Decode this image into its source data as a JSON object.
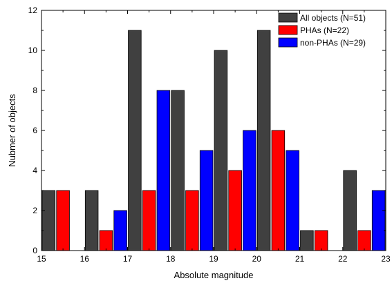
{
  "chart_data": {
    "type": "bar",
    "title": "",
    "xlabel": "Absolute magnitude",
    "ylabel": "Nubmer of objects",
    "xlim": [
      15,
      23
    ],
    "ylim": [
      0,
      12
    ],
    "bin_edges": [
      15,
      16,
      17,
      18,
      19,
      20,
      21,
      22,
      23
    ],
    "x_ticks": [
      "15",
      "16",
      "17",
      "18",
      "19",
      "20",
      "21",
      "22",
      "23"
    ],
    "y_ticks": [
      "0",
      "2",
      "4",
      "6",
      "8",
      "10",
      "12"
    ],
    "grid": false,
    "legend_position": "top-right",
    "series": [
      {
        "name": "All objects (N=51)",
        "color": "#404040",
        "values": [
          3,
          3,
          11,
          8,
          10,
          11,
          1,
          4
        ]
      },
      {
        "name": "PHAs (N=22)",
        "color": "#ff0000",
        "values": [
          3,
          1,
          3,
          3,
          4,
          6,
          1,
          1
        ]
      },
      {
        "name": "non-PHAs (N=29)",
        "color": "#0000ff",
        "values": [
          0,
          2,
          8,
          5,
          6,
          5,
          0,
          3
        ]
      }
    ]
  }
}
